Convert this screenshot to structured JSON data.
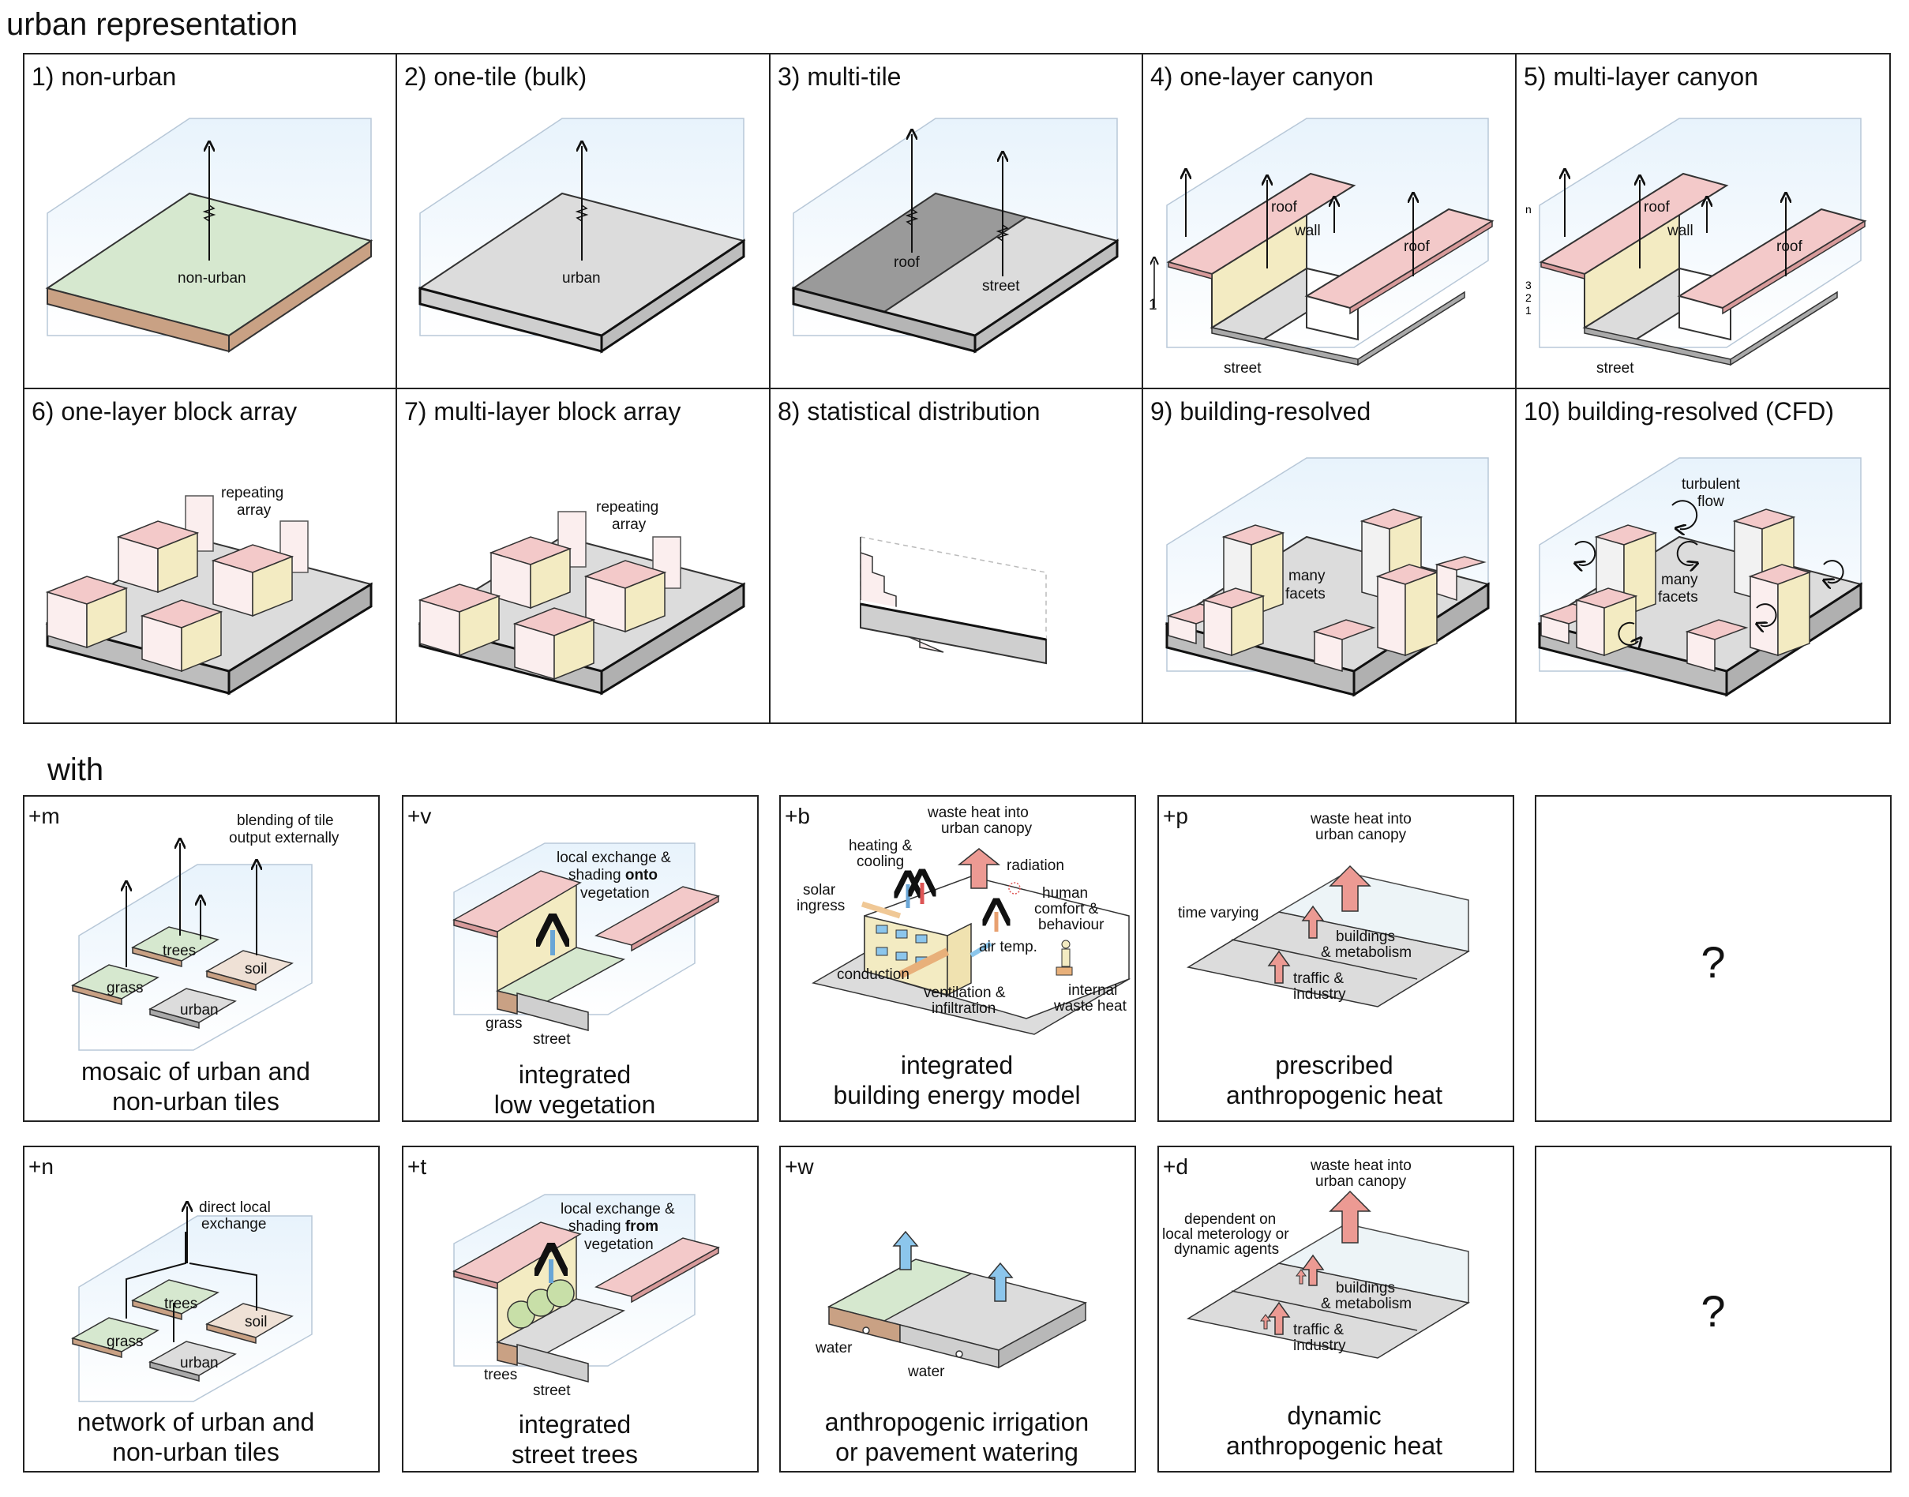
{
  "sections": {
    "urban": "urban representation",
    "with": "with"
  },
  "panels": [
    {
      "title": "1) non-urban",
      "labels": [
        "non-urban"
      ]
    },
    {
      "title": "2) one-tile (bulk)",
      "labels": [
        "urban"
      ]
    },
    {
      "title": "3) multi-tile",
      "labels": [
        "roof",
        "street"
      ]
    },
    {
      "title": "4) one-layer canyon",
      "labels": [
        "roof",
        "wall",
        "roof",
        "street",
        "1"
      ]
    },
    {
      "title": "5) multi-layer canyon",
      "labels": [
        "roof",
        "wall",
        "roof",
        "street",
        "n",
        "3",
        "2",
        "1"
      ]
    },
    {
      "title": "6) one-layer block array",
      "labels": [
        "repeating",
        "array"
      ]
    },
    {
      "title": "7) multi-layer block array",
      "labels": [
        "repeating",
        "array"
      ]
    },
    {
      "title": "8) statistical distribution",
      "labels": []
    },
    {
      "title": "9) building-resolved",
      "labels": [
        "many",
        "facets"
      ]
    },
    {
      "title": "10) building-resolved (CFD)",
      "labels": [
        "turbulent",
        "flow",
        "many",
        "facets"
      ]
    }
  ],
  "options": [
    {
      "tag": "+m",
      "caption": [
        "mosaic of urban and",
        "non-urban tiles"
      ],
      "labels": [
        "blending of tile",
        "output externally",
        "trees",
        "soil",
        "grass",
        "urban"
      ]
    },
    {
      "tag": "+v",
      "caption": [
        "integrated",
        "low vegetation"
      ],
      "labels": [
        "local exchange &",
        "shading ",
        "onto",
        "vegetation",
        "grass",
        "street"
      ]
    },
    {
      "tag": "+b",
      "caption": [
        "integrated",
        "building energy model"
      ],
      "labels": [
        "waste heat into",
        "urban canopy",
        "heating &",
        "cooling",
        "radiation",
        "solar",
        "ingress",
        "human",
        "comfort &",
        "behaviour",
        "air temp.",
        "conduction",
        "ventilation &",
        "infiltration",
        "internal",
        "waste heat"
      ]
    },
    {
      "tag": "+p",
      "caption": [
        "prescribed",
        "anthropogenic heat"
      ],
      "labels": [
        "waste heat into",
        "urban canopy",
        "time varying",
        "buildings",
        "& metabolism",
        "traffic &",
        "industry"
      ]
    },
    {
      "tag": "",
      "caption": [],
      "labels": [
        "?"
      ]
    },
    {
      "tag": "+n",
      "caption": [
        "network of urban and",
        "non-urban tiles"
      ],
      "labels": [
        "direct local",
        "exchange",
        "trees",
        "soil",
        "grass",
        "urban"
      ]
    },
    {
      "tag": "+t",
      "caption": [
        "integrated",
        "street trees"
      ],
      "labels": [
        "local exchange &",
        "shading ",
        "from",
        "vegetation",
        "trees",
        "street"
      ]
    },
    {
      "tag": "+w",
      "caption": [
        "anthropogenic irrigation",
        "or pavement watering"
      ],
      "labels": [
        "water",
        "water"
      ]
    },
    {
      "tag": "+d",
      "caption": [
        "dynamic",
        "anthropogenic heat"
      ],
      "labels": [
        "waste heat into",
        "urban canopy",
        "dependent on",
        "local meterology or",
        "dynamic agents",
        "buildings",
        "& metabolism",
        "traffic &",
        "industry"
      ]
    },
    {
      "tag": "",
      "caption": [],
      "labels": [
        "?"
      ]
    }
  ],
  "colors": {
    "green": "#d6e8cf",
    "soil": "#c9a184",
    "grey": "#dcdcdc",
    "darkgrey": "#9a9a9a",
    "roof": "#f3c9c9",
    "wall": "#f3ebc2",
    "sky": "#eef5fb",
    "arrow": "#ec9a93",
    "blue": "#8cc6ec"
  }
}
